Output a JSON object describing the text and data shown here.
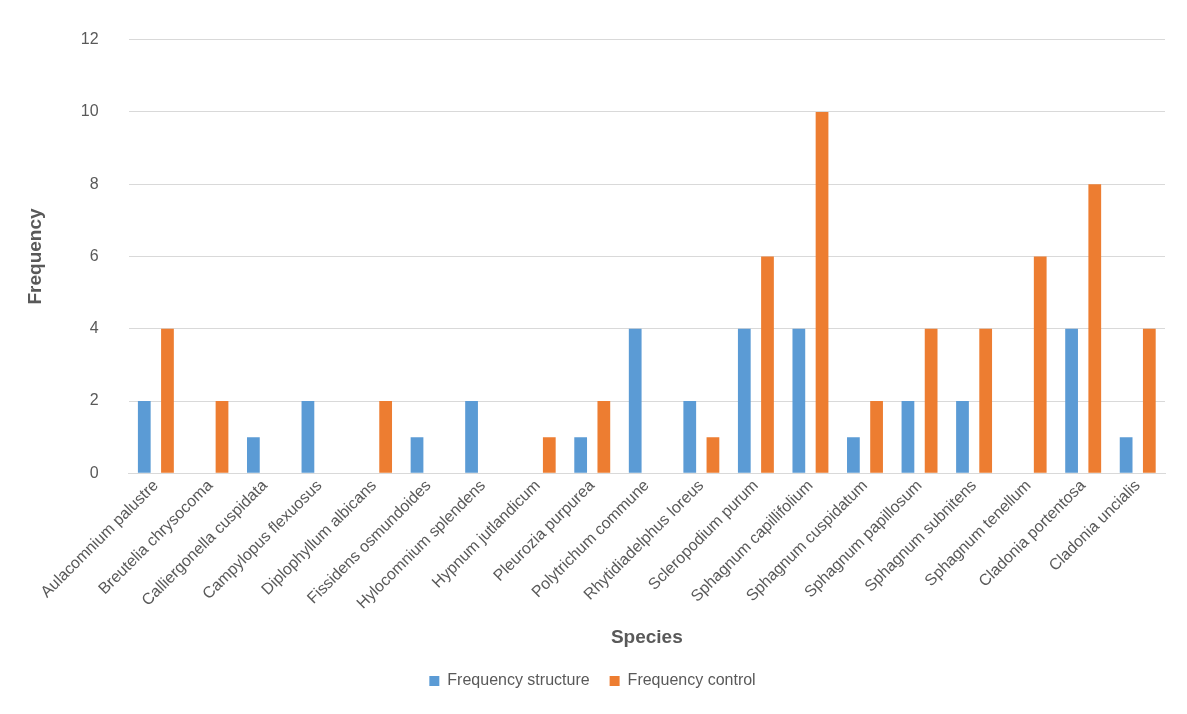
{
  "chart_data": {
    "type": "bar",
    "xlabel": "Species",
    "ylabel": "Frequency",
    "categories": [
      "Aulacomnium palustre",
      "Breutelia chrysocoma",
      "Calliergonella cuspidata",
      "Campylopus flexuosus",
      "Diplophyllum albicans",
      "Fissidens osmundoides",
      "Hylocomnium splendens",
      "Hypnum jutlandicum",
      "Pleurozia purpurea",
      "Polytrichum commune",
      "Rhytidiadelphus loreus",
      "Scleropodium purum",
      "Sphagnum capillifolium",
      "Sphagnum cuspidatum",
      "Sphagnum papillosum",
      "Sphagnum subnitens",
      "Sphagnum tenellum",
      "Cladonia portentosa",
      "Cladonia uncialis"
    ],
    "series": [
      {
        "name": "Frequency structure",
        "color": "#5b9bd5",
        "values": [
          2,
          0,
          1,
          2,
          0,
          1,
          2,
          0,
          1,
          4,
          2,
          4,
          4,
          1,
          2,
          2,
          0,
          4,
          1
        ]
      },
      {
        "name": "Frequency control",
        "color": "#ed7d31",
        "values": [
          4,
          2,
          0,
          0,
          2,
          0,
          0,
          1,
          2,
          0,
          1,
          6,
          10,
          2,
          4,
          4,
          6,
          8,
          4
        ]
      }
    ],
    "ylim": [
      0,
      12
    ],
    "yticks": [
      0,
      2,
      4,
      6,
      8,
      10,
      12
    ],
    "grid": "y",
    "legend": "bottom"
  }
}
